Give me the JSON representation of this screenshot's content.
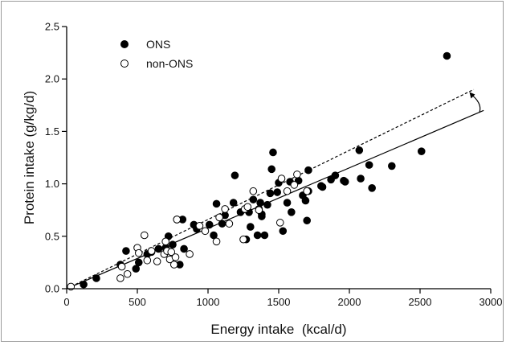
{
  "chart_data": {
    "type": "scatter",
    "title": "",
    "xlabel": "Energy intake  (kcal/d)",
    "ylabel": "Protein intake (g/kg/d)",
    "xlim": [
      0,
      3000
    ],
    "ylim": [
      0,
      2.5
    ],
    "xticks": [
      "0",
      "500",
      "1000",
      "1500",
      "2000",
      "2500",
      "3000"
    ],
    "yticks": [
      "0.0",
      "0.5",
      "1.0",
      "1.5",
      "2.0",
      "2.5"
    ],
    "grid": false,
    "legend_position": "top-left",
    "series": [
      {
        "name": "ONS",
        "marker": "filled-circle",
        "color": "#000000",
        "points": [
          [
            120,
            0.04
          ],
          [
            210,
            0.1
          ],
          [
            380,
            0.23
          ],
          [
            420,
            0.36
          ],
          [
            490,
            0.19
          ],
          [
            510,
            0.25
          ],
          [
            570,
            0.33
          ],
          [
            600,
            0.35
          ],
          [
            650,
            0.38
          ],
          [
            700,
            0.39
          ],
          [
            720,
            0.5
          ],
          [
            750,
            0.42
          ],
          [
            780,
            0.66
          ],
          [
            800,
            0.23
          ],
          [
            820,
            0.66
          ],
          [
            830,
            0.38
          ],
          [
            900,
            0.61
          ],
          [
            920,
            0.57
          ],
          [
            1010,
            0.61
          ],
          [
            1040,
            0.51
          ],
          [
            1060,
            0.81
          ],
          [
            1100,
            0.62
          ],
          [
            1120,
            0.7
          ],
          [
            1180,
            0.82
          ],
          [
            1190,
            1.08
          ],
          [
            1230,
            0.73
          ],
          [
            1270,
            0.47
          ],
          [
            1290,
            0.73
          ],
          [
            1300,
            0.59
          ],
          [
            1320,
            0.85
          ],
          [
            1350,
            0.51
          ],
          [
            1360,
            0.76
          ],
          [
            1370,
            0.82
          ],
          [
            1380,
            0.69
          ],
          [
            1380,
            0.71
          ],
          [
            1400,
            0.51
          ],
          [
            1420,
            0.8
          ],
          [
            1440,
            0.91
          ],
          [
            1450,
            1.14
          ],
          [
            1460,
            1.3
          ],
          [
            1490,
            0.92
          ],
          [
            1500,
            1.01
          ],
          [
            1530,
            0.55
          ],
          [
            1560,
            0.82
          ],
          [
            1580,
            1.02
          ],
          [
            1590,
            0.73
          ],
          [
            1640,
            1.03
          ],
          [
            1670,
            0.89
          ],
          [
            1690,
            0.84
          ],
          [
            1700,
            0.65
          ],
          [
            1710,
            1.13
          ],
          [
            1710,
            0.93
          ],
          [
            1800,
            0.98
          ],
          [
            1810,
            0.97
          ],
          [
            1870,
            1.04
          ],
          [
            1900,
            1.08
          ],
          [
            1960,
            1.03
          ],
          [
            1970,
            1.02
          ],
          [
            2070,
            1.32
          ],
          [
            2080,
            1.05
          ],
          [
            2140,
            1.18
          ],
          [
            2160,
            0.96
          ],
          [
            2300,
            1.17
          ],
          [
            2510,
            1.31
          ],
          [
            2690,
            2.22
          ]
        ]
      },
      {
        "name": "non-ONS",
        "marker": "open-circle",
        "color": "#000000",
        "points": [
          [
            30,
            0.02
          ],
          [
            380,
            0.1
          ],
          [
            390,
            0.21
          ],
          [
            430,
            0.14
          ],
          [
            500,
            0.39
          ],
          [
            510,
            0.34
          ],
          [
            550,
            0.51
          ],
          [
            570,
            0.27
          ],
          [
            600,
            0.36
          ],
          [
            640,
            0.26
          ],
          [
            690,
            0.33
          ],
          [
            700,
            0.45
          ],
          [
            710,
            0.36
          ],
          [
            730,
            0.28
          ],
          [
            740,
            0.35
          ],
          [
            760,
            0.23
          ],
          [
            770,
            0.3
          ],
          [
            780,
            0.66
          ],
          [
            870,
            0.33
          ],
          [
            940,
            0.6
          ],
          [
            980,
            0.55
          ],
          [
            1060,
            0.45
          ],
          [
            1080,
            0.68
          ],
          [
            1120,
            0.76
          ],
          [
            1150,
            0.62
          ],
          [
            1250,
            0.47
          ],
          [
            1260,
            0.76
          ],
          [
            1280,
            0.78
          ],
          [
            1320,
            0.93
          ],
          [
            1360,
            0.75
          ],
          [
            1510,
            0.63
          ],
          [
            1520,
            1.05
          ],
          [
            1560,
            0.93
          ],
          [
            1610,
            0.99
          ],
          [
            1630,
            1.09
          ],
          [
            1700,
            0.93
          ]
        ]
      }
    ],
    "lines": [
      {
        "name": "ONS fit",
        "style": "solid",
        "x": [
          0,
          2950
        ],
        "y": [
          0.0,
          1.7
        ]
      },
      {
        "name": "non-ONS fit",
        "style": "dashed",
        "x": [
          0,
          2880
        ],
        "y": [
          0.0,
          1.9
        ]
      }
    ],
    "annotation": {
      "type": "curved-arrow",
      "from": [
        2920,
        1.68
      ],
      "to": [
        2855,
        1.86
      ]
    }
  }
}
